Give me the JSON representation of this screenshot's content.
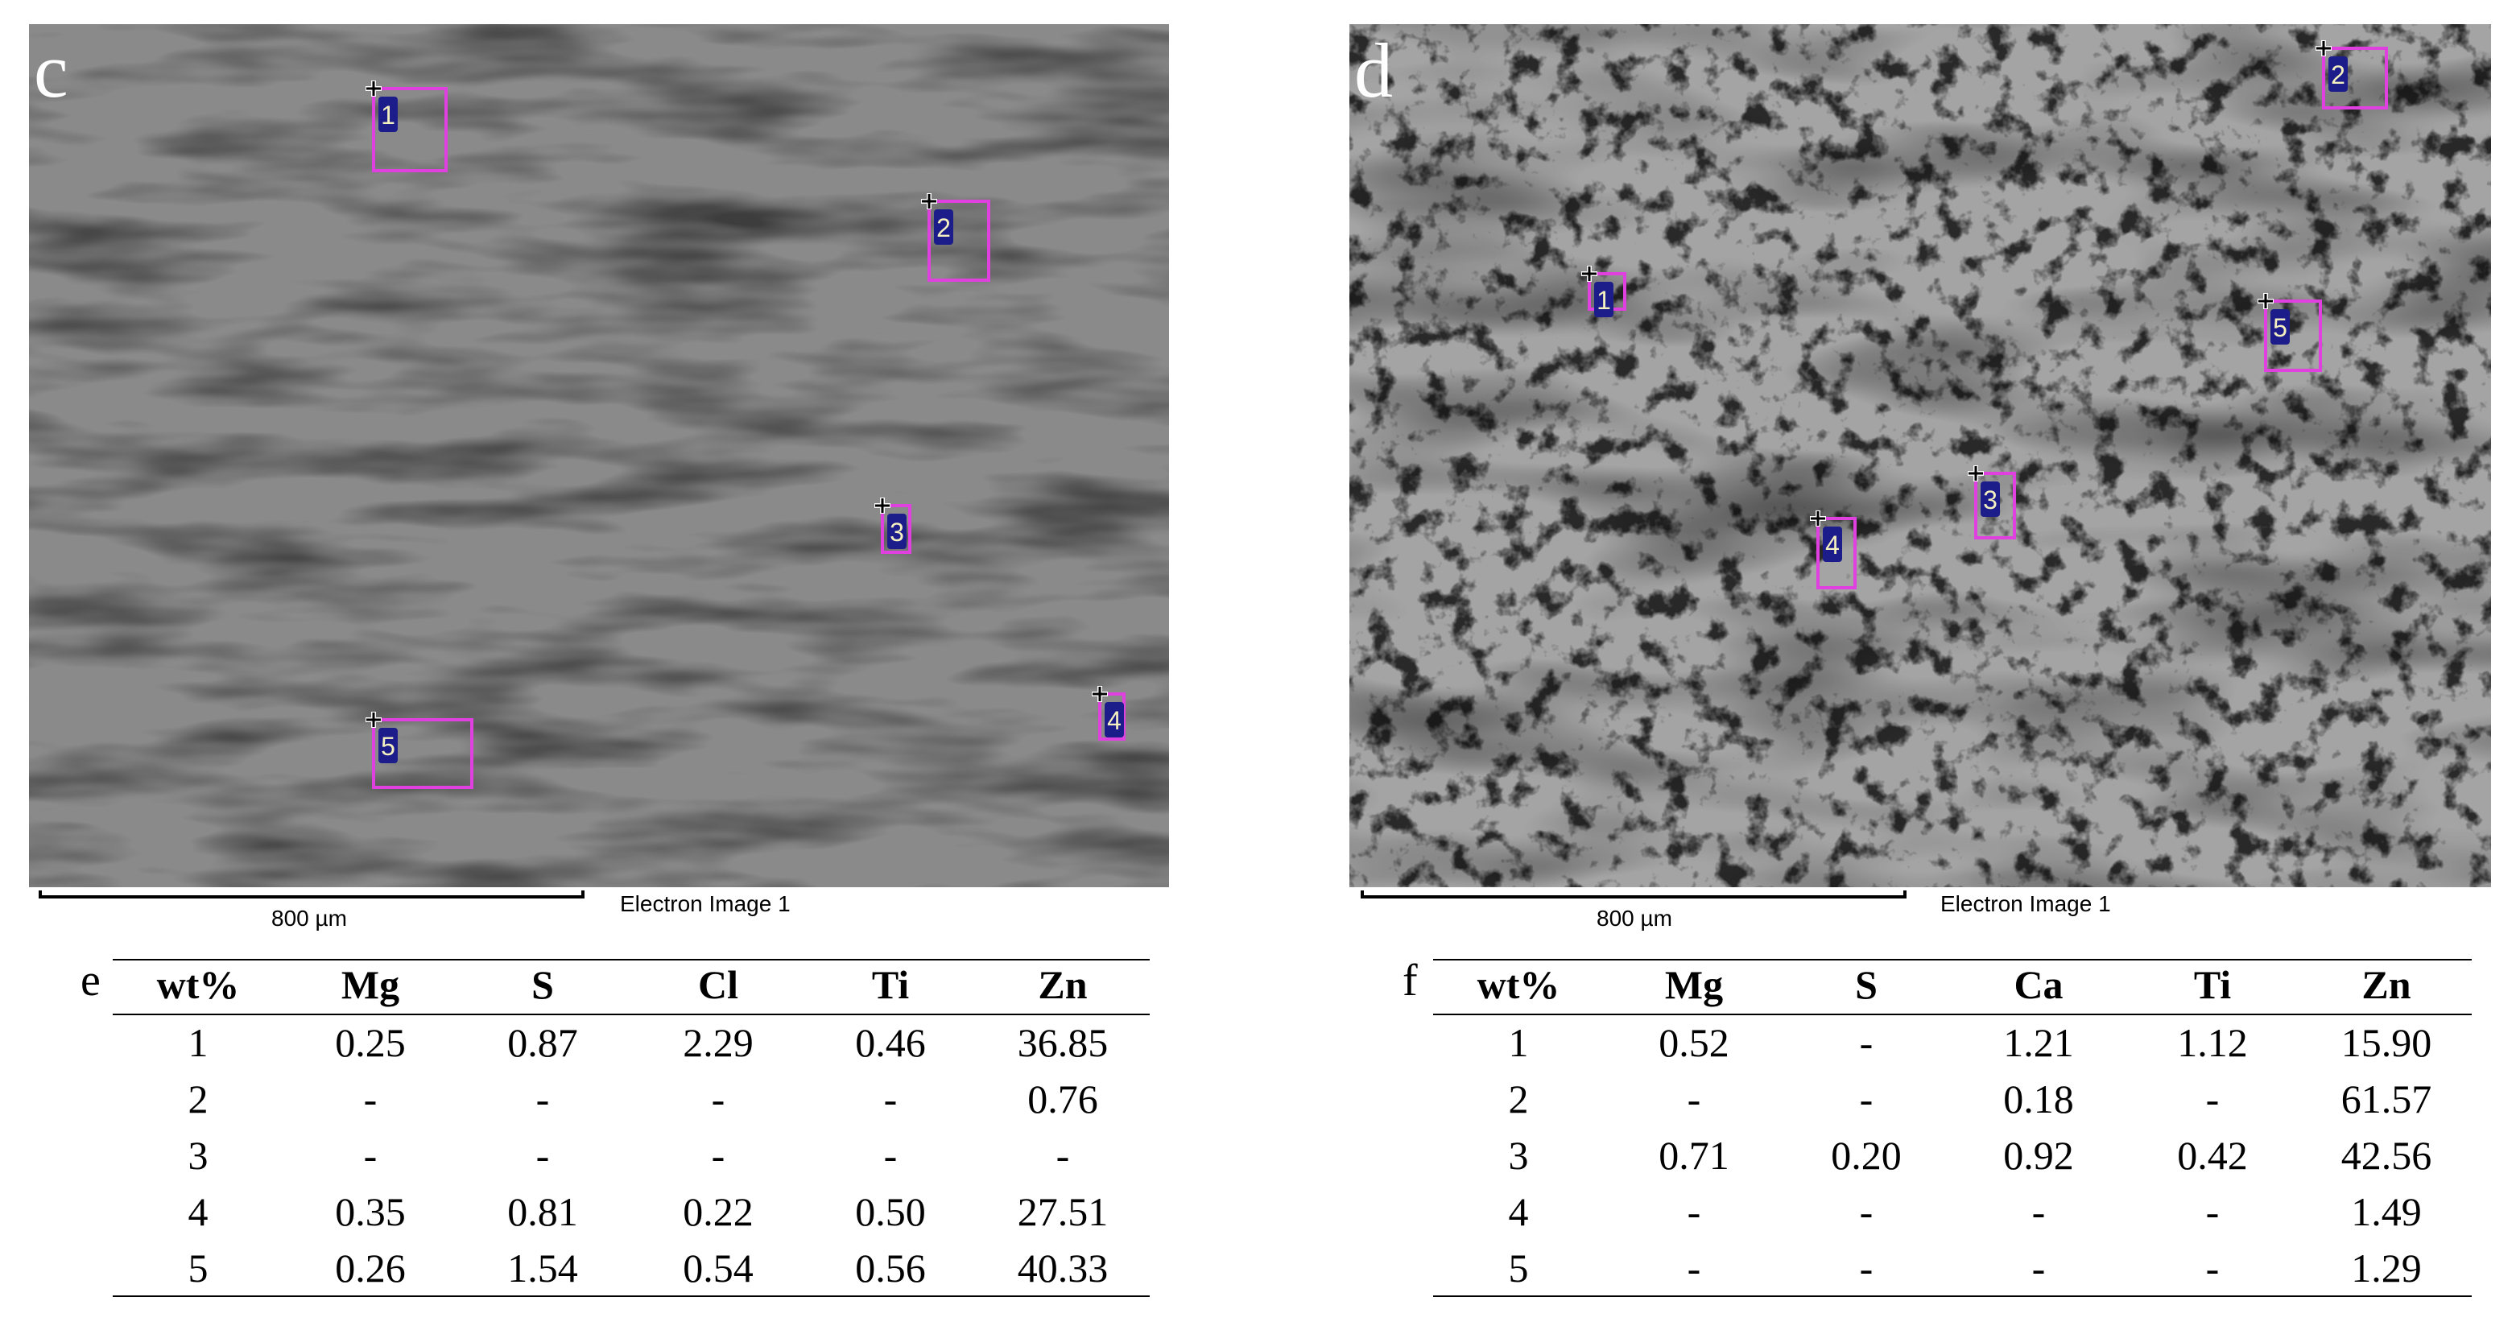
{
  "panels": [
    {
      "label": "c",
      "markers": [
        "1",
        "2",
        "3",
        "4",
        "5"
      ],
      "scale_bar": "800 µm",
      "caption": "Electron Image 1"
    },
    {
      "label": "d",
      "markers": [
        "1",
        "2",
        "3",
        "4",
        "5"
      ],
      "scale_bar": "800 µm",
      "caption": "Electron Image 1"
    }
  ],
  "tables": [
    {
      "label": "e",
      "columns": [
        "wt%",
        "Mg",
        "S",
        "Cl",
        "Ti",
        "Zn"
      ],
      "rows": [
        [
          "1",
          "0.25",
          "0.87",
          "2.29",
          "0.46",
          "36.85"
        ],
        [
          "2",
          "-",
          "-",
          "-",
          "-",
          "0.76"
        ],
        [
          "3",
          "-",
          "-",
          "-",
          "-",
          "-"
        ],
        [
          "4",
          "0.35",
          "0.81",
          "0.22",
          "0.50",
          "27.51"
        ],
        [
          "5",
          "0.26",
          "1.54",
          "0.54",
          "0.56",
          "40.33"
        ]
      ]
    },
    {
      "label": "f",
      "columns": [
        "wt%",
        "Mg",
        "S",
        "Ca",
        "Ti",
        "Zn"
      ],
      "rows": [
        [
          "1",
          "0.52",
          "-",
          "1.21",
          "1.12",
          "15.90"
        ],
        [
          "2",
          "-",
          "-",
          "0.18",
          "-",
          "61.57"
        ],
        [
          "3",
          "0.71",
          "0.20",
          "0.92",
          "0.42",
          "42.56"
        ],
        [
          "4",
          "-",
          "-",
          "-",
          "-",
          "1.49"
        ],
        [
          "5",
          "-",
          "-",
          "-",
          "-",
          "1.29"
        ]
      ]
    }
  ]
}
